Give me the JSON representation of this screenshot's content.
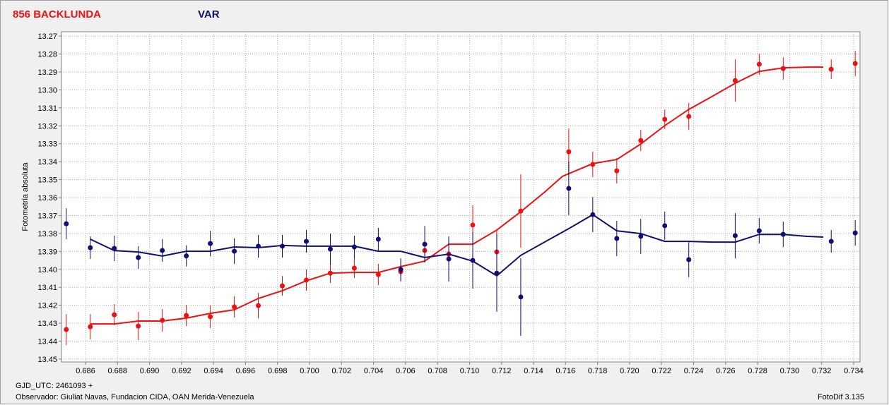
{
  "chart_data": {
    "type": "scatter",
    "ylabel": "Fotometria absoluta",
    "footer_left": "GJD_UTC: 2461093 +",
    "observer": "Observador: Giuliat Navas, Fundacion CIDA, OAN  Merida-Venezuela",
    "software": "FotoDif 3.135",
    "xlim": [
      0.6845,
      0.7344
    ],
    "ylim": [
      13.2676,
      13.4516
    ],
    "y_inverted": true,
    "grid": true,
    "xticks": [
      0.686,
      0.688,
      {
        "value": 0.69,
        "label": "0.690"
      },
      0.692,
      0.694,
      0.696,
      0.698,
      {
        "value": 0.7,
        "label": "0.700"
      },
      0.702,
      0.704,
      0.706,
      0.708,
      {
        "value": 0.71,
        "label": "0.710"
      },
      0.712,
      0.714,
      0.716,
      0.718,
      {
        "value": 0.72,
        "label": "0.720"
      },
      0.722,
      0.724,
      0.726,
      0.728,
      {
        "value": 0.73,
        "label": "0.730"
      },
      0.732,
      0.734
    ],
    "yticks": [
      13.27,
      13.28,
      13.29,
      {
        "value": 13.3,
        "label": "13.30"
      },
      13.31,
      13.32,
      13.33,
      13.34,
      13.35,
      13.36,
      13.37,
      13.38,
      13.39,
      {
        "value": 13.4,
        "label": "13.40"
      },
      13.41,
      13.42,
      13.43,
      13.44,
      13.45
    ],
    "series": [
      {
        "name": "856 BACKLUNDA",
        "color": "#ee1111",
        "x": [
          0.6848,
          0.6863,
          0.6878,
          0.6893,
          0.6908,
          0.6923,
          0.6938,
          0.6953,
          0.6968,
          0.6983,
          0.6998,
          0.7013,
          0.7028,
          0.7043,
          0.7057,
          0.7072,
          0.7087,
          0.7102,
          0.7117,
          0.7132,
          0.7162,
          0.7177,
          0.7192,
          0.7207,
          0.7222,
          0.7237,
          0.7266,
          0.7281,
          0.7296,
          0.7326,
          0.7341
        ],
        "values": [
          13.4335,
          13.432,
          13.4253,
          13.4316,
          13.4284,
          13.4257,
          13.4264,
          13.4209,
          13.4202,
          13.4092,
          13.406,
          13.4021,
          13.3993,
          13.4029,
          13.4013,
          13.3895,
          13.3915,
          13.3753,
          13.3903,
          13.3675,
          13.3345,
          13.3415,
          13.3451,
          13.3282,
          13.3164,
          13.3148,
          13.2948,
          13.2857,
          13.2881,
          13.2885,
          13.2853
        ],
        "errors": [
          0.0086,
          0.0071,
          0.0059,
          0.0079,
          0.0063,
          0.0059,
          0.0063,
          0.0059,
          0.0071,
          0.0055,
          0.0059,
          0.0055,
          0.0055,
          0.0059,
          0.0055,
          0.0055,
          0.0055,
          0.011,
          0.0118,
          0.0204,
          0.013,
          0.0071,
          0.0071,
          0.0059,
          0.0055,
          0.0075,
          0.0118,
          0.0059,
          0.0063,
          0.0055,
          0.0071
        ],
        "fit_x": [
          0.6863,
          0.6878,
          0.6893,
          0.6908,
          0.6923,
          0.6938,
          0.6953,
          0.6968,
          0.6983,
          0.6998,
          0.7013,
          0.7028,
          0.7043,
          0.7057,
          0.7072,
          0.7087,
          0.7102,
          0.7117,
          0.7132,
          0.7147,
          0.7158,
          0.7177,
          0.7192,
          0.7207,
          0.7222,
          0.7237,
          0.7252,
          0.7266,
          0.7281,
          0.7296,
          0.7311,
          0.7321
        ],
        "fit_values": [
          13.4304,
          13.4304,
          13.4288,
          13.4288,
          13.4272,
          13.4245,
          13.4225,
          13.4162,
          13.4119,
          13.4064,
          13.4021,
          13.4017,
          13.4017,
          13.3985,
          13.3954,
          13.386,
          13.386,
          13.3781,
          13.3679,
          13.3569,
          13.3482,
          13.3411,
          13.3388,
          13.3301,
          13.3199,
          13.3109,
          13.3034,
          13.2963,
          13.2897,
          13.2877,
          13.2873,
          13.2873
        ]
      },
      {
        "name": "VAR",
        "color": "#101070",
        "x": [
          0.6848,
          0.6863,
          0.6878,
          0.6893,
          0.6908,
          0.6923,
          0.6938,
          0.6953,
          0.6968,
          0.6983,
          0.6998,
          0.7013,
          0.7028,
          0.7043,
          0.7057,
          0.7072,
          0.7087,
          0.7102,
          0.7117,
          0.7132,
          0.7162,
          0.7177,
          0.7192,
          0.7207,
          0.7222,
          0.7237,
          0.7266,
          0.7281,
          0.7296,
          0.7326,
          0.7341
        ],
        "values": [
          13.3746,
          13.3879,
          13.3883,
          13.3934,
          13.3895,
          13.3925,
          13.3856,
          13.3899,
          13.3871,
          13.3871,
          13.3844,
          13.3887,
          13.3875,
          13.3832,
          13.4001,
          13.386,
          13.3942,
          13.395,
          13.4021,
          13.4154,
          13.3549,
          13.3695,
          13.3828,
          13.3816,
          13.3757,
          13.3946,
          13.3812,
          13.3785,
          13.3805,
          13.3844,
          13.3797
        ],
        "errors": [
          0.0086,
          0.0063,
          0.0071,
          0.0063,
          0.0063,
          0.0059,
          0.0071,
          0.0071,
          0.0063,
          0.0063,
          0.0063,
          0.0086,
          0.0063,
          0.0063,
          0.0063,
          0.0102,
          0.0126,
          0.0157,
          0.0216,
          0.0216,
          0.0149,
          0.0098,
          0.0098,
          0.0098,
          0.0079,
          0.0098,
          0.0126,
          0.0071,
          0.0071,
          0.0063,
          0.0071
        ],
        "fit_x": [
          0.6863,
          0.6878,
          0.6893,
          0.6908,
          0.6923,
          0.6938,
          0.6953,
          0.6968,
          0.6983,
          0.6998,
          0.7013,
          0.7028,
          0.7043,
          0.7057,
          0.7072,
          0.7087,
          0.7102,
          0.7117,
          0.7132,
          0.7162,
          0.7177,
          0.7192,
          0.7207,
          0.7222,
          0.7237,
          0.7252,
          0.7266,
          0.7281,
          0.7296,
          0.7311,
          0.7321
        ],
        "fit_values": [
          13.3832,
          13.3895,
          13.3903,
          13.3926,
          13.3899,
          13.3899,
          13.3875,
          13.3879,
          13.3867,
          13.3871,
          13.3871,
          13.3871,
          13.3899,
          13.3899,
          13.3934,
          13.3915,
          13.3954,
          13.4036,
          13.3922,
          13.3773,
          13.3695,
          13.3785,
          13.3801,
          13.3844,
          13.3844,
          13.3848,
          13.3848,
          13.3805,
          13.3805,
          13.3816,
          13.382
        ]
      }
    ]
  }
}
